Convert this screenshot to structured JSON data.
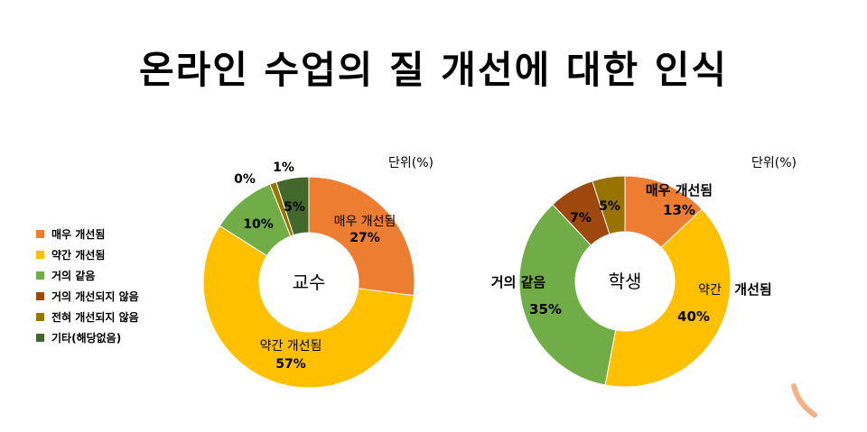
{
  "title": "온라인 수업의 질 개선에 대한 인식",
  "unit_label": "단위(%)",
  "legend": [
    {
      "label": "매우 개선됨",
      "color": "#ED7D31"
    },
    {
      "label": "약간 개선됨",
      "color": "#FFC000"
    },
    {
      "label": "거의 같음",
      "color": "#70AD47"
    },
    {
      "label": "거의 개선되지 않음",
      "color": "#9E480E"
    },
    {
      "label": "전혀 개선되지 않음",
      "color": "#997300"
    },
    {
      "label": "기타(해당없음)",
      "color": "#43682B"
    }
  ],
  "chart_data": [
    {
      "type": "pie",
      "center_label": "교수",
      "categories": [
        "매우 개선됨",
        "약간 개선됨",
        "거의 같음",
        "거의 개선되지 않음",
        "전혀 개선되지 않음",
        "기타(해당없음)"
      ],
      "values": [
        27,
        57,
        10,
        0,
        1,
        5
      ],
      "data_labels": [
        "27%",
        "57%",
        "10%",
        "0%",
        "1%",
        "5%"
      ],
      "colors": [
        "#ED7D31",
        "#FFC000",
        "#70AD47",
        "#9E480E",
        "#997300",
        "#43682B"
      ]
    },
    {
      "type": "pie",
      "center_label": "학생",
      "categories": [
        "매우 개선됨",
        "약간 개선됨",
        "거의 같음",
        "거의 개선되지 않음",
        "전혀 개선되지 않음"
      ],
      "values": [
        13,
        40,
        35,
        7,
        5
      ],
      "data_labels": [
        "13%",
        "40%",
        "35%",
        "7%",
        "5%"
      ],
      "colors": [
        "#ED7D31",
        "#FFC000",
        "#70AD47",
        "#9E480E",
        "#997300"
      ]
    }
  ],
  "deco_color": "#F4B183"
}
